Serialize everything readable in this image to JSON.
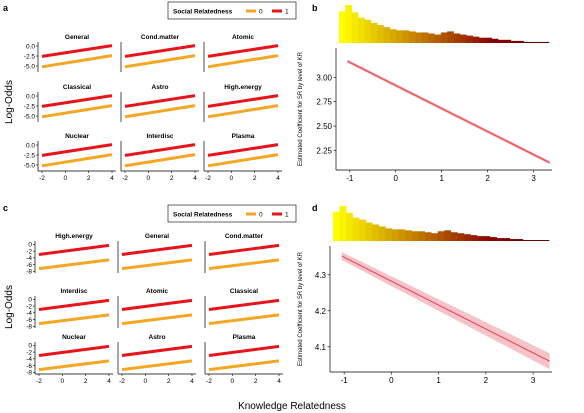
{
  "colors": {
    "sr0": "#F5A623",
    "sr1": "#E8141C",
    "fit_b": "#E8474C",
    "band_b": "#F08A8E",
    "fit_d": "#E04050",
    "band_d": "#F6B8C0",
    "axis": "#000000",
    "grid_text": "#333333"
  },
  "x_axis_label": "Knowledge Relatedness",
  "chart_data": [
    {
      "type": "line",
      "panel": "a",
      "ylabel": "Log-Odds",
      "legend": {
        "title": "Social Relatedness",
        "entries": [
          "0",
          "1"
        ],
        "position": "top"
      },
      "xlim": [
        -2,
        4
      ],
      "xticks": [
        -2,
        0,
        2,
        4
      ],
      "ylim": [
        -6.5,
        1.0
      ],
      "yticks": [
        0.0,
        -2.5,
        -5.0
      ],
      "ytick_labels": [
        "0.0",
        "-2.5",
        "-5.0"
      ],
      "facets": [
        {
          "name": "General",
          "series": [
            {
              "name": "0",
              "x": [
                -2,
                4
              ],
              "y": [
                -5.2,
                -2.4
              ]
            },
            {
              "name": "1",
              "x": [
                -2,
                4
              ],
              "y": [
                -2.6,
                0.1
              ]
            }
          ]
        },
        {
          "name": "Cond.matter",
          "series": [
            {
              "name": "0",
              "x": [
                -2,
                4
              ],
              "y": [
                -5.2,
                -2.4
              ]
            },
            {
              "name": "1",
              "x": [
                -2,
                4
              ],
              "y": [
                -2.6,
                0.1
              ]
            }
          ]
        },
        {
          "name": "Atomic",
          "series": [
            {
              "name": "0",
              "x": [
                -2,
                4
              ],
              "y": [
                -5.2,
                -2.4
              ]
            },
            {
              "name": "1",
              "x": [
                -2,
                4
              ],
              "y": [
                -2.6,
                0.1
              ]
            }
          ]
        },
        {
          "name": "Classical",
          "series": [
            {
              "name": "0",
              "x": [
                -2,
                4
              ],
              "y": [
                -5.2,
                -2.4
              ]
            },
            {
              "name": "1",
              "x": [
                -2,
                4
              ],
              "y": [
                -2.6,
                0.1
              ]
            }
          ]
        },
        {
          "name": "Astro",
          "series": [
            {
              "name": "0",
              "x": [
                -2,
                4
              ],
              "y": [
                -5.2,
                -2.4
              ]
            },
            {
              "name": "1",
              "x": [
                -2,
                4
              ],
              "y": [
                -2.6,
                0.1
              ]
            }
          ]
        },
        {
          "name": "High.energy",
          "series": [
            {
              "name": "0",
              "x": [
                -2,
                4
              ],
              "y": [
                -5.2,
                -2.4
              ]
            },
            {
              "name": "1",
              "x": [
                -2,
                4
              ],
              "y": [
                -2.6,
                0.1
              ]
            }
          ]
        },
        {
          "name": "Nuclear",
          "series": [
            {
              "name": "0",
              "x": [
                -2,
                4
              ],
              "y": [
                -5.2,
                -2.4
              ]
            },
            {
              "name": "1",
              "x": [
                -2,
                4
              ],
              "y": [
                -2.6,
                0.1
              ]
            }
          ]
        },
        {
          "name": "Interdisc",
          "series": [
            {
              "name": "0",
              "x": [
                -2,
                4
              ],
              "y": [
                -5.2,
                -2.4
              ]
            },
            {
              "name": "1",
              "x": [
                -2,
                4
              ],
              "y": [
                -2.6,
                0.1
              ]
            }
          ]
        },
        {
          "name": "Plasma",
          "series": [
            {
              "name": "0",
              "x": [
                -2,
                4
              ],
              "y": [
                -5.2,
                -2.4
              ]
            },
            {
              "name": "1",
              "x": [
                -2,
                4
              ],
              "y": [
                -2.6,
                0.1
              ]
            }
          ]
        }
      ]
    },
    {
      "type": "line",
      "panel": "b",
      "ylabel": "Estimated Coefficient for SR by level of KR",
      "xlim": [
        -1.3,
        3.4
      ],
      "xticks": [
        -1,
        0,
        1,
        2,
        3
      ],
      "ylim": [
        2.05,
        3.3
      ],
      "yticks": [
        2.25,
        2.5,
        2.75,
        3.0
      ],
      "ytick_labels": [
        "2.25",
        "2.50",
        "2.75",
        "3.00"
      ],
      "series": [
        {
          "name": "",
          "x": [
            -1.05,
            3.35
          ],
          "y": [
            3.165,
            2.125
          ],
          "band": 0.015
        }
      ],
      "histogram": {
        "counts": [
          30,
          36,
          29,
          24,
          22,
          19,
          17,
          15,
          13,
          12,
          12,
          11,
          10,
          10,
          9,
          8,
          10,
          11,
          9,
          8,
          7,
          6,
          5,
          5,
          4,
          3,
          3,
          2,
          2,
          1,
          1,
          1,
          1
        ]
      }
    },
    {
      "type": "line",
      "panel": "c",
      "ylabel": "Log-Odds",
      "legend": {
        "title": "Social Relatedness",
        "entries": [
          "0",
          "1"
        ],
        "position": "top"
      },
      "xlim": [
        -2,
        4
      ],
      "xticks": [
        -2,
        0,
        2,
        4
      ],
      "ylim": [
        -8.5,
        1.0
      ],
      "yticks": [
        0,
        -2,
        -4,
        -6,
        -8
      ],
      "ytick_labels": [
        "0",
        "-2",
        "-4",
        "-6",
        "-8"
      ],
      "facets": [
        {
          "name": "High.energy",
          "series": [
            {
              "name": "0",
              "x": [
                -2,
                4
              ],
              "y": [
                -7.2,
                -4.6
              ]
            },
            {
              "name": "1",
              "x": [
                -2,
                4
              ],
              "y": [
                -3.0,
                -0.3
              ]
            }
          ]
        },
        {
          "name": "General",
          "series": [
            {
              "name": "0",
              "x": [
                -2,
                4
              ],
              "y": [
                -7.2,
                -4.6
              ]
            },
            {
              "name": "1",
              "x": [
                -2,
                4
              ],
              "y": [
                -3.0,
                -0.3
              ]
            }
          ]
        },
        {
          "name": "Cond.matter",
          "series": [
            {
              "name": "0",
              "x": [
                -2,
                4
              ],
              "y": [
                -7.2,
                -4.6
              ]
            },
            {
              "name": "1",
              "x": [
                -2,
                4
              ],
              "y": [
                -3.0,
                -0.3
              ]
            }
          ]
        },
        {
          "name": "Interdisc",
          "series": [
            {
              "name": "0",
              "x": [
                -2,
                4
              ],
              "y": [
                -7.2,
                -4.6
              ]
            },
            {
              "name": "1",
              "x": [
                -2,
                4
              ],
              "y": [
                -3.0,
                -0.3
              ]
            }
          ]
        },
        {
          "name": "Atomic",
          "series": [
            {
              "name": "0",
              "x": [
                -2,
                4
              ],
              "y": [
                -7.2,
                -4.6
              ]
            },
            {
              "name": "1",
              "x": [
                -2,
                4
              ],
              "y": [
                -3.0,
                -0.3
              ]
            }
          ]
        },
        {
          "name": "Classical",
          "series": [
            {
              "name": "0",
              "x": [
                -2,
                4
              ],
              "y": [
                -7.2,
                -4.6
              ]
            },
            {
              "name": "1",
              "x": [
                -2,
                4
              ],
              "y": [
                -3.0,
                -0.3
              ]
            }
          ]
        },
        {
          "name": "Nuclear",
          "series": [
            {
              "name": "0",
              "x": [
                -2,
                4
              ],
              "y": [
                -7.2,
                -4.6
              ]
            },
            {
              "name": "1",
              "x": [
                -2,
                4
              ],
              "y": [
                -3.0,
                -0.3
              ]
            }
          ]
        },
        {
          "name": "Astro",
          "series": [
            {
              "name": "0",
              "x": [
                -2,
                4
              ],
              "y": [
                -7.2,
                -4.6
              ]
            },
            {
              "name": "1",
              "x": [
                -2,
                4
              ],
              "y": [
                -3.0,
                -0.3
              ]
            }
          ]
        },
        {
          "name": "Plasma",
          "series": [
            {
              "name": "0",
              "x": [
                -2,
                4
              ],
              "y": [
                -7.2,
                -4.6
              ]
            },
            {
              "name": "1",
              "x": [
                -2,
                4
              ],
              "y": [
                -3.0,
                -0.3
              ]
            }
          ]
        }
      ]
    },
    {
      "type": "line",
      "panel": "d",
      "ylabel": "Estimated Coefficient for SR by level of KR",
      "xlim": [
        -1.3,
        3.4
      ],
      "xticks": [
        -1,
        0,
        1,
        2,
        3
      ],
      "ylim": [
        4.03,
        4.38
      ],
      "yticks": [
        4.1,
        4.2,
        4.3
      ],
      "ytick_labels": [
        "4.1",
        "4.2",
        "4.3"
      ],
      "series": [
        {
          "name": "",
          "x": [
            -1.05,
            3.35
          ],
          "y": [
            4.352,
            4.06
          ],
          "band_start": 0.011,
          "band_end": 0.022
        }
      ],
      "histogram": {
        "counts": [
          30,
          36,
          29,
          24,
          22,
          19,
          17,
          15,
          13,
          12,
          12,
          11,
          10,
          10,
          9,
          8,
          10,
          11,
          9,
          8,
          7,
          6,
          5,
          5,
          4,
          3,
          3,
          2,
          2,
          1,
          1,
          1,
          1
        ]
      }
    }
  ]
}
